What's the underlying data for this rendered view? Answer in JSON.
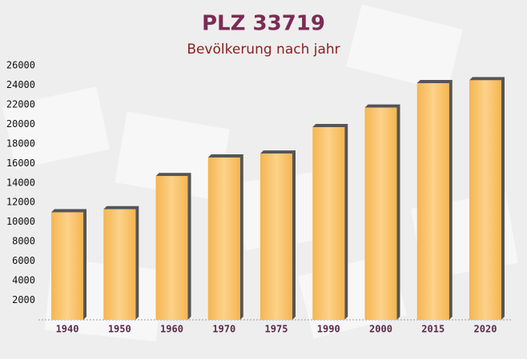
{
  "chart_data": {
    "type": "bar",
    "title": "PLZ 33719",
    "subtitle": "Bevölkerung nach jahr",
    "categories": [
      "1940",
      "1950",
      "1960",
      "1970",
      "1975",
      "1990",
      "2000",
      "2015",
      "2020"
    ],
    "values": [
      11000,
      11300,
      14700,
      16600,
      17000,
      19700,
      21700,
      24200,
      24500
    ],
    "color": "#f7c063",
    "ylim": [
      0,
      26000
    ],
    "yticks": [
      2000,
      4000,
      6000,
      8000,
      10000,
      12000,
      14000,
      16000,
      18000,
      20000,
      22000,
      24000,
      26000
    ],
    "grid": false
  }
}
